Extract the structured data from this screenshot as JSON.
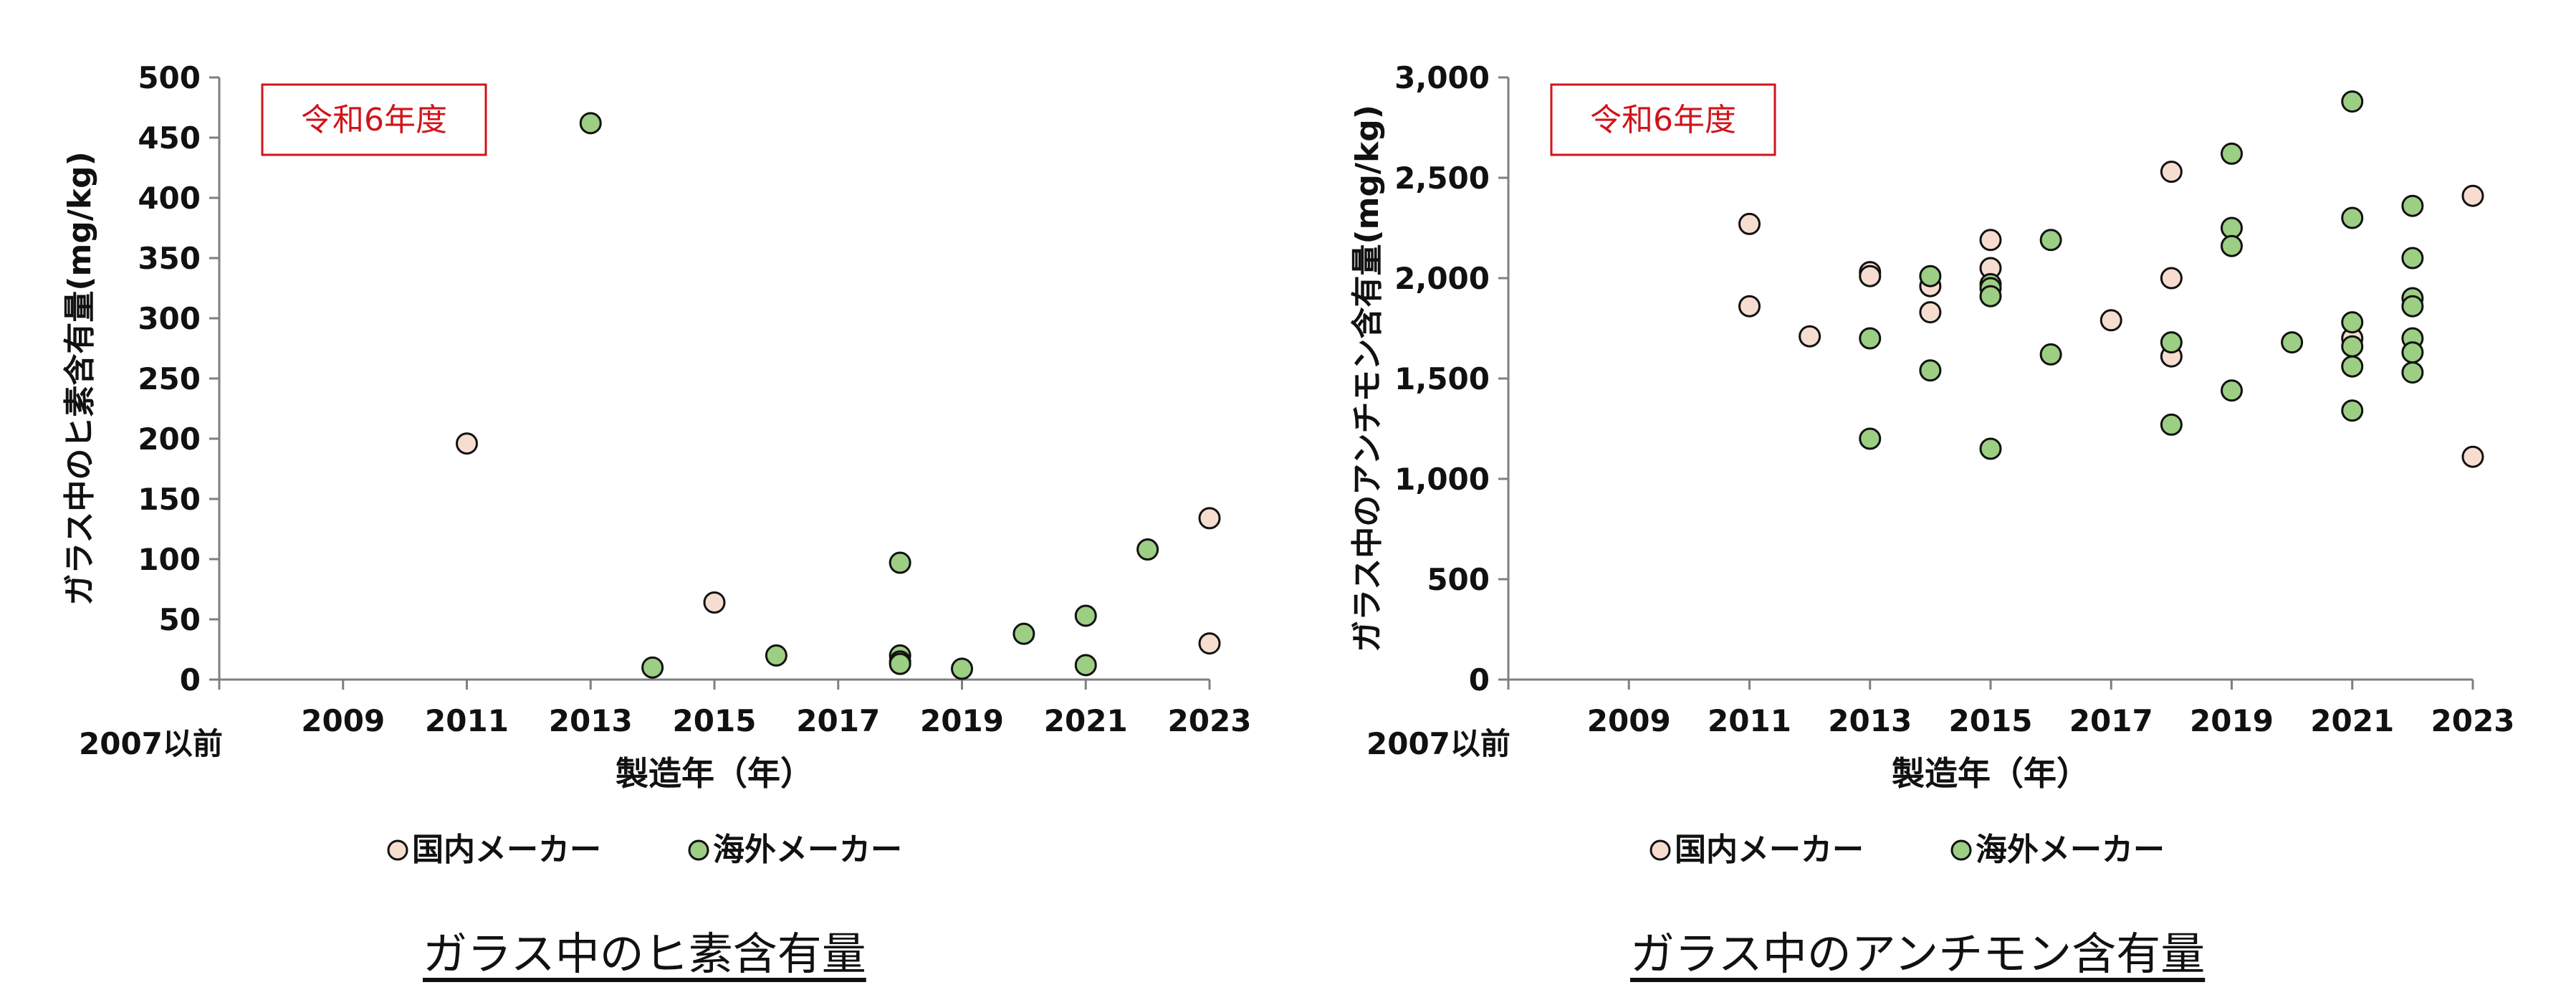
{
  "colors": {
    "domestic": "#f6ddcf",
    "overseas": "#9cce84",
    "stroke": "#111111",
    "badge": "#d0141a"
  },
  "legend": {
    "domestic": "国内メーカー",
    "overseas": "海外メーカー"
  },
  "chart_data": [
    {
      "type": "scatter",
      "title": "ガラス中のヒ素含有量",
      "badge": "令和6年度",
      "xlabel": "製造年（年）",
      "ylabel": "ガラス中のヒ素含有量(mg/kg)",
      "x_ticks": [
        "2007以前",
        "2009",
        "2011",
        "2013",
        "2015",
        "2017",
        "2019",
        "2021",
        "2023"
      ],
      "xlim": [
        2007,
        2023
      ],
      "ylim": [
        0,
        500
      ],
      "y_ticks": [
        "0",
        "50",
        "100",
        "150",
        "200",
        "250",
        "300",
        "350",
        "400",
        "450",
        "500"
      ],
      "grid": false,
      "legend_position": "bottom",
      "series": [
        {
          "name": "国内メーカー",
          "color": "#f6ddcf",
          "points": [
            [
              2011,
              196
            ],
            [
              2015,
              64
            ],
            [
              2023,
              134
            ],
            [
              2023,
              30
            ]
          ]
        },
        {
          "name": "海外メーカー",
          "color": "#9cce84",
          "points": [
            [
              2013,
              462
            ],
            [
              2014,
              10
            ],
            [
              2016,
              20
            ],
            [
              2018,
              97
            ],
            [
              2018,
              20
            ],
            [
              2018,
              15
            ],
            [
              2018,
              13
            ],
            [
              2019,
              9
            ],
            [
              2020,
              38
            ],
            [
              2021,
              53
            ],
            [
              2021,
              12
            ],
            [
              2022,
              108
            ]
          ]
        }
      ]
    },
    {
      "type": "scatter",
      "title": "ガラス中のアンチモン含有量",
      "badge": "令和6年度",
      "xlabel": "製造年（年）",
      "ylabel": "ガラス中のアンチモン含有量(mg/kg)",
      "x_ticks": [
        "2007以前",
        "2009",
        "2011",
        "2013",
        "2015",
        "2017",
        "2019",
        "2021",
        "2023"
      ],
      "xlim": [
        2007,
        2023
      ],
      "ylim": [
        0,
        3000
      ],
      "y_ticks": [
        "0",
        "500",
        "1,000",
        "1,500",
        "2,000",
        "2,500",
        "3,000"
      ],
      "grid": false,
      "legend_position": "bottom",
      "series": [
        {
          "name": "国内メーカー",
          "color": "#f6ddcf",
          "points": [
            [
              2011,
              2270
            ],
            [
              2011,
              1860
            ],
            [
              2012,
              1710
            ],
            [
              2013,
              2030
            ],
            [
              2013,
              2010
            ],
            [
              2014,
              1960
            ],
            [
              2014,
              1830
            ],
            [
              2015,
              2190
            ],
            [
              2015,
              2050
            ],
            [
              2017,
              1790
            ],
            [
              2018,
              2530
            ],
            [
              2018,
              2000
            ],
            [
              2018,
              1610
            ],
            [
              2021,
              1700
            ],
            [
              2023,
              2410
            ],
            [
              2023,
              1110
            ]
          ]
        },
        {
          "name": "海外メーカー",
          "color": "#9cce84",
          "points": [
            [
              2013,
              1700
            ],
            [
              2013,
              1200
            ],
            [
              2014,
              2010
            ],
            [
              2014,
              1540
            ],
            [
              2015,
              1970
            ],
            [
              2015,
              1950
            ],
            [
              2015,
              1910
            ],
            [
              2015,
              1150
            ],
            [
              2016,
              2190
            ],
            [
              2016,
              1620
            ],
            [
              2018,
              1680
            ],
            [
              2018,
              1270
            ],
            [
              2019,
              2620
            ],
            [
              2019,
              2250
            ],
            [
              2019,
              2160
            ],
            [
              2019,
              1440
            ],
            [
              2020,
              1680
            ],
            [
              2021,
              2880
            ],
            [
              2021,
              2300
            ],
            [
              2021,
              1780
            ],
            [
              2021,
              1660
            ],
            [
              2021,
              1560
            ],
            [
              2021,
              1340
            ],
            [
              2022,
              2360
            ],
            [
              2022,
              2100
            ],
            [
              2022,
              1900
            ],
            [
              2022,
              1860
            ],
            [
              2022,
              1700
            ],
            [
              2022,
              1630
            ],
            [
              2022,
              1530
            ]
          ]
        }
      ]
    }
  ]
}
